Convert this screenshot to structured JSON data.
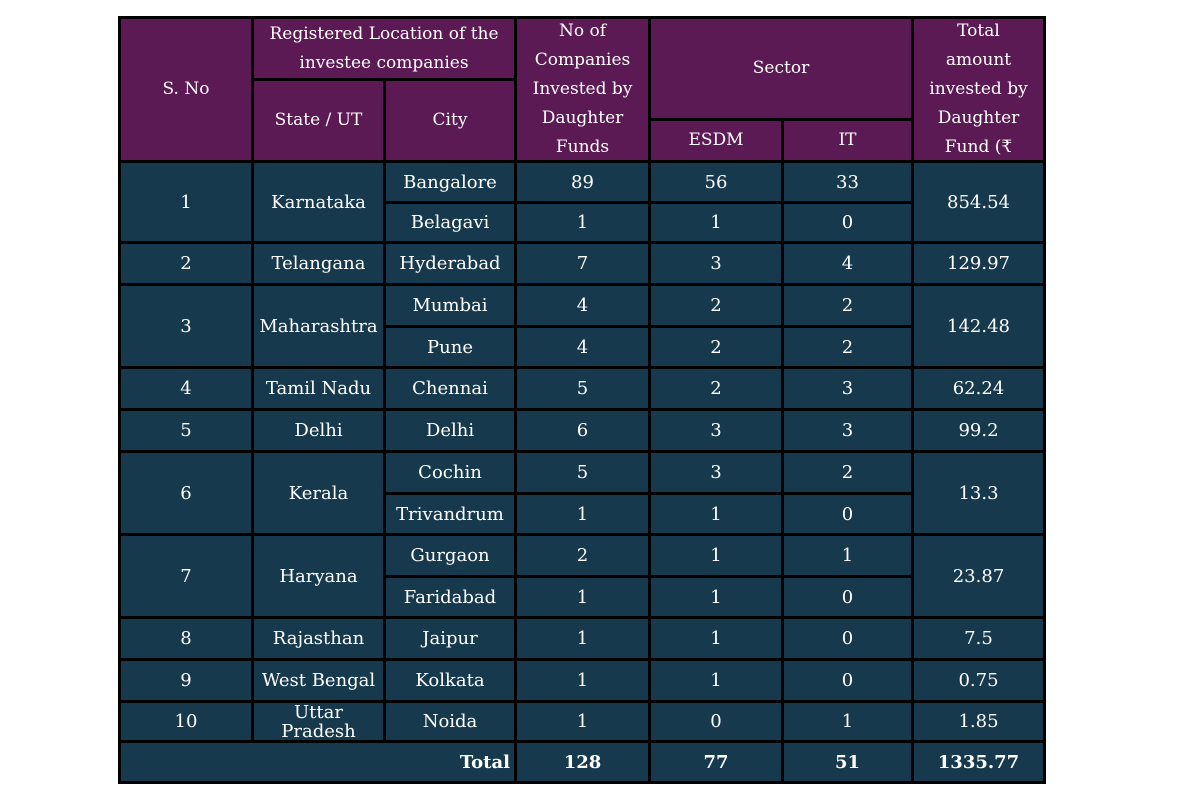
{
  "header": {
    "sno": "S. No",
    "location_group": "Registered Location of the\ninvestee companies",
    "state": "State / UT",
    "city": "City",
    "companies": "No of\nCompanies\nInvested by\nDaughter\nFunds",
    "sector_group": "Sector",
    "esdm": "ESDM",
    "it": "IT",
    "total_amount": "Total\namount\ninvested by\nDaughter\nFund (₹"
  },
  "rows": [
    {
      "sno": "1",
      "state": "Karnataka",
      "amount": "854.54",
      "cities": [
        {
          "city": "Bangalore",
          "companies": "89",
          "esdm": "56",
          "it": "33"
        },
        {
          "city": "Belagavi",
          "companies": "1",
          "esdm": "1",
          "it": "0"
        }
      ]
    },
    {
      "sno": "2",
      "state": "Telangana",
      "amount": "129.97",
      "cities": [
        {
          "city": "Hyderabad",
          "companies": "7",
          "esdm": "3",
          "it": "4"
        }
      ]
    },
    {
      "sno": "3",
      "state": "Maharashtra",
      "amount": "142.48",
      "cities": [
        {
          "city": "Mumbai",
          "companies": "4",
          "esdm": "2",
          "it": "2"
        },
        {
          "city": "Pune",
          "companies": "4",
          "esdm": "2",
          "it": "2"
        }
      ]
    },
    {
      "sno": "4",
      "state": "Tamil Nadu",
      "amount": "62.24",
      "cities": [
        {
          "city": "Chennai",
          "companies": "5",
          "esdm": "2",
          "it": "3"
        }
      ]
    },
    {
      "sno": "5",
      "state": "Delhi",
      "amount": "99.2",
      "cities": [
        {
          "city": "Delhi",
          "companies": "6",
          "esdm": "3",
          "it": "3"
        }
      ]
    },
    {
      "sno": "6",
      "state": "Kerala",
      "amount": "13.3",
      "cities": [
        {
          "city": "Cochin",
          "companies": "5",
          "esdm": "3",
          "it": "2"
        },
        {
          "city": "Trivandrum",
          "companies": "1",
          "esdm": "1",
          "it": "0"
        }
      ]
    },
    {
      "sno": "7",
      "state": "Haryana",
      "amount": "23.87",
      "cities": [
        {
          "city": "Gurgaon",
          "companies": "2",
          "esdm": "1",
          "it": "1"
        },
        {
          "city": "Faridabad",
          "companies": "1",
          "esdm": "1",
          "it": "0"
        }
      ]
    },
    {
      "sno": "8",
      "state": "Rajasthan",
      "amount": "7.5",
      "cities": [
        {
          "city": "Jaipur",
          "companies": "1",
          "esdm": "1",
          "it": "0"
        }
      ]
    },
    {
      "sno": "9",
      "state": "West Bengal",
      "amount": "0.75",
      "cities": [
        {
          "city": "Kolkata",
          "companies": "1",
          "esdm": "1",
          "it": "0"
        }
      ]
    },
    {
      "sno": "10",
      "state": "Uttar\nPradesh",
      "amount": "1.85",
      "cities": [
        {
          "city": "Noida",
          "companies": "1",
          "esdm": "0",
          "it": "1"
        }
      ]
    }
  ],
  "total": {
    "label": "Total",
    "companies": "128",
    "esdm": "77",
    "it": "51",
    "amount": "1335.77"
  },
  "colors": {
    "header_bg": "#5c1a55",
    "body_bg": "#17394d",
    "border": "#000000",
    "text": "#ffffff"
  }
}
